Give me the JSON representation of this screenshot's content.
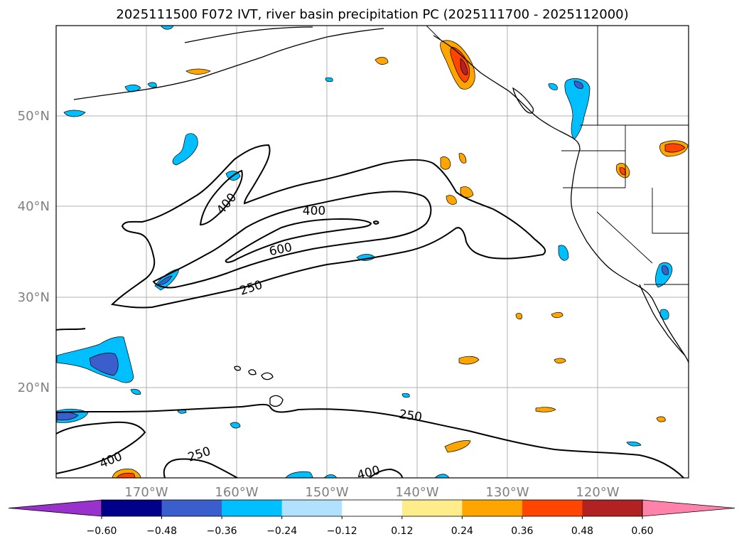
{
  "title": "2025111500 F072 IVT, river basin precipitation PC (2025111700 - 2025112000)",
  "map": {
    "lon_labels": [
      "170°W",
      "160°W",
      "150°W",
      "140°W",
      "130°W",
      "120°W"
    ],
    "lat_labels": [
      "50°N",
      "40°N",
      "30°N",
      "20°N"
    ],
    "lon_range": [
      -180,
      -110
    ],
    "lat_range": [
      10,
      60
    ],
    "grid": true
  },
  "ivt_contour_labels": [
    "400",
    "400",
    "600",
    "250",
    "250",
    "250",
    "400",
    "400"
  ],
  "colorbar": {
    "ticks": [
      "−0.60",
      "−0.48",
      "−0.36",
      "−0.24",
      "−0.12",
      "0.12",
      "0.24",
      "0.36",
      "0.48",
      "0.60"
    ],
    "colors": [
      "#9932cc",
      "#00008b",
      "#3a5fcd",
      "#00bfff",
      "#b0e2ff",
      "#ffffff",
      "#ffec8b",
      "#ffa500",
      "#ff4500",
      "#b22222",
      "#ff82ab"
    ],
    "extend": "both"
  }
}
